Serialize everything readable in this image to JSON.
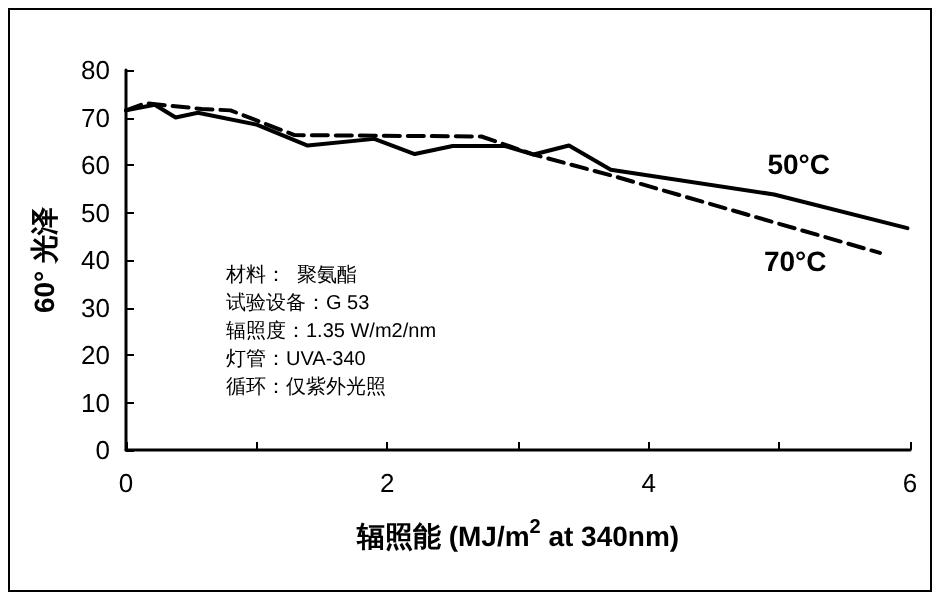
{
  "chart_data": {
    "type": "line",
    "xlabel": "辐照能 (MJ/m$^{2}$ at 340nm)",
    "ylabel": "60° 光泽",
    "xlim": [
      0,
      6
    ],
    "xticks": [
      0,
      {
        "value": 1,
        "label": null
      },
      2,
      {
        "value": 3,
        "label": null
      },
      4,
      {
        "value": 5,
        "label": null
      },
      6
    ],
    "ylim": [
      0,
      80
    ],
    "yticks": [
      0,
      10,
      20,
      30,
      40,
      50,
      60,
      70,
      80
    ],
    "grid": false,
    "legend": false,
    "marker": "none",
    "series": [
      {
        "name": "50°C",
        "color": "#000000",
        "line_style": "solid",
        "x": [
          0,
          0.22,
          0.38,
          0.55,
          1.0,
          1.39,
          1.9,
          2.21,
          2.5,
          2.9,
          3.12,
          3.39,
          3.71,
          4.96,
          5.98
        ],
        "values": [
          71.5,
          72.7,
          70,
          71,
          68.5,
          64.1,
          65.5,
          62.3,
          64,
          64,
          62.2,
          64.1,
          59,
          53.8,
          46.7
        ]
      },
      {
        "name": "70°C",
        "color": "#000000",
        "line_style": "dashed",
        "x": [
          0,
          0.15,
          0.58,
          0.8,
          1.29,
          2.72,
          3.12,
          3.74,
          5.77
        ],
        "values": [
          71.5,
          73,
          71.8,
          71.5,
          66.3,
          66,
          62.2,
          57.6,
          41.5
        ]
      }
    ],
    "annotations": [
      "材料：  聚氨酯",
      "试验设备：G 53",
      "辐照度：1.35 W/m2/nm",
      "灯管：UVA-340",
      "循环：仅紫外光照"
    ]
  }
}
